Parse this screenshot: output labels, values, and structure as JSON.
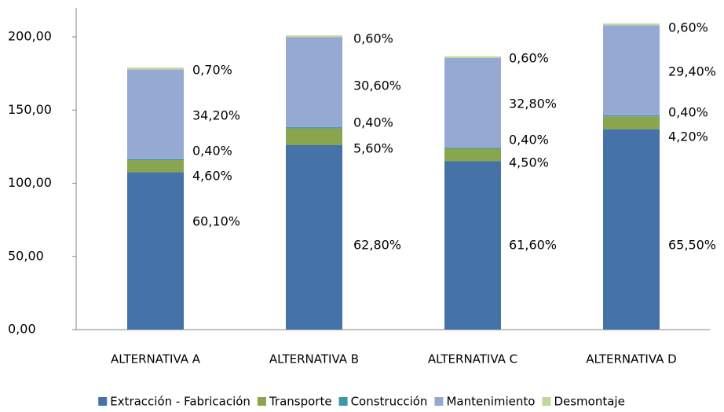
{
  "chart_data": {
    "type": "stacked_bar",
    "categories": [
      "ALTERNATIVA A",
      "ALTERNATIVA B",
      "ALTERNATIVA C",
      "ALTERNATIVA D"
    ],
    "series": [
      {
        "name": "Extracción - Fabricación",
        "color": "#4572a7",
        "values": [
          107.6,
          126.2,
          115.2,
          136.9
        ],
        "share_labels": [
          "60,10%",
          "62,80%",
          "61,60%",
          "65,50%"
        ]
      },
      {
        "name": "Transporte",
        "color": "#89a54e",
        "values": [
          8.2,
          11.3,
          8.4,
          8.8
        ],
        "share_labels": [
          "4,60%",
          "5,60%",
          "4,50%",
          "4,20%"
        ]
      },
      {
        "name": "Construcción",
        "color": "#3d96ae",
        "values": [
          0.7,
          0.8,
          0.7,
          0.8
        ],
        "share_labels": [
          "0,40%",
          "0,40%",
          "0,40%",
          "0,40%"
        ]
      },
      {
        "name": "Mantenimiento",
        "color": "#95a9d3",
        "values": [
          61.2,
          61.5,
          61.3,
          61.4
        ],
        "share_labels": [
          "34,20%",
          "30,60%",
          "32,80%",
          "29,40%"
        ]
      },
      {
        "name": "Desmontaje",
        "color": "#c3d69b",
        "values": [
          1.3,
          1.2,
          1.1,
          1.3
        ],
        "share_labels": [
          "0,70%",
          "0,60%",
          "0,60%",
          "0,60%"
        ]
      }
    ],
    "ylim": [
      0,
      220
    ],
    "yticks": [
      {
        "value": 0,
        "label": "0,00"
      },
      {
        "value": 50,
        "label": "50,00"
      },
      {
        "value": 100,
        "label": "100,00"
      },
      {
        "value": 150,
        "label": "150,00"
      },
      {
        "value": 200,
        "label": "200,00"
      }
    ],
    "legend": "bottom",
    "grid": false
  }
}
